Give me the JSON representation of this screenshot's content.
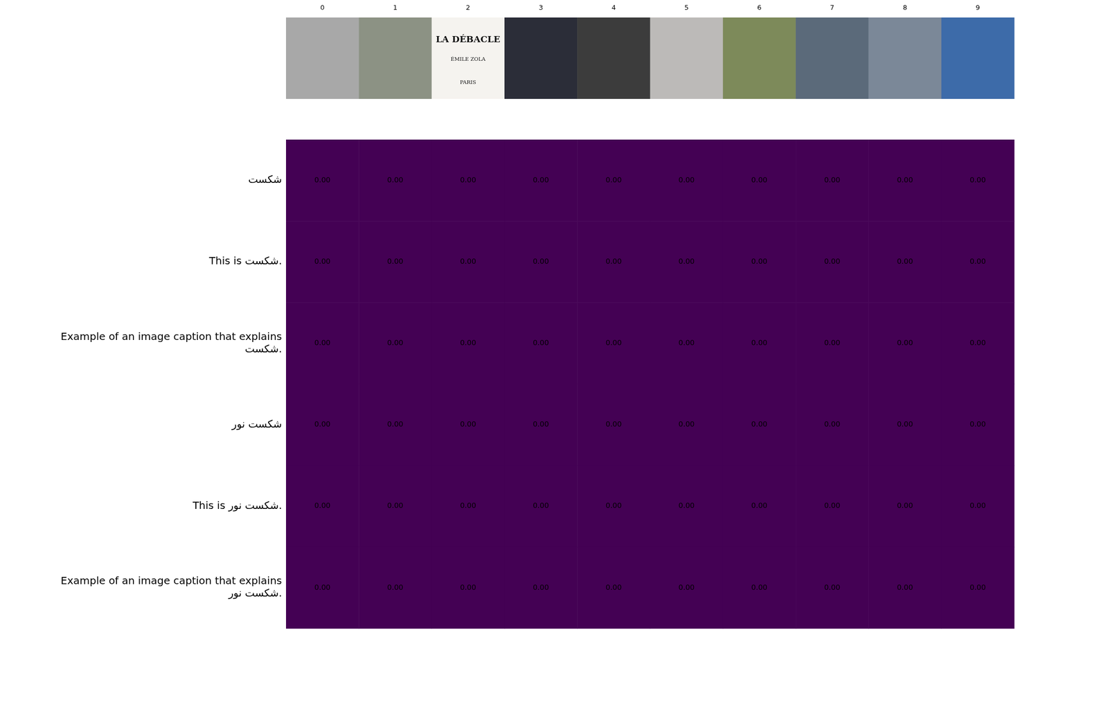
{
  "chart_data": {
    "type": "heatmap",
    "columns": [
      0,
      1,
      2,
      3,
      4,
      5,
      6,
      7,
      8,
      9
    ],
    "rows": [
      [
        "شکست"
      ],
      [
        "This is شکست."
      ],
      [
        "Example of an image caption that explains",
        "شکست."
      ],
      [
        "شکست نور"
      ],
      [
        "This is شکست نور."
      ],
      [
        "Example of an image caption that explains",
        "شکست نور."
      ]
    ],
    "cells": [
      [
        0,
        0,
        0,
        0,
        0,
        0,
        0,
        0,
        0,
        0
      ],
      [
        0,
        0,
        0,
        0,
        0,
        0,
        0,
        0,
        0,
        0
      ],
      [
        0,
        0,
        0,
        0,
        0,
        0,
        0,
        0,
        0,
        0
      ],
      [
        0,
        0,
        0,
        0,
        0,
        0,
        0,
        0,
        0,
        0
      ],
      [
        0,
        0,
        0,
        0,
        0,
        0,
        0,
        0,
        0,
        0
      ],
      [
        0,
        0,
        0,
        0,
        0,
        0,
        0,
        0,
        0,
        0
      ]
    ],
    "value_labels": [
      [
        "0.00",
        "0.00",
        "0.00",
        "0.00",
        "0.00",
        "0.00",
        "0.00",
        "0.00",
        "0.00",
        "0.00"
      ],
      [
        "0.00",
        "0.00",
        "0.00",
        "0.00",
        "0.00",
        "0.00",
        "0.00",
        "0.00",
        "0.00",
        "0.00"
      ],
      [
        "0.00",
        "0.00",
        "0.00",
        "0.00",
        "0.00",
        "0.00",
        "0.00",
        "0.00",
        "0.00",
        "0.00"
      ],
      [
        "0.00",
        "0.00",
        "0.00",
        "0.00",
        "0.00",
        "0.00",
        "0.00",
        "0.00",
        "0.00",
        "0.00"
      ],
      [
        "0.00",
        "0.00",
        "0.00",
        "0.00",
        "0.00",
        "0.00",
        "0.00",
        "0.00",
        "0.00",
        "0.00"
      ],
      [
        "0.00",
        "0.00",
        "0.00",
        "0.00",
        "0.00",
        "0.00",
        "0.00",
        "0.00",
        "0.00",
        "0.00"
      ]
    ],
    "image_texts": {
      "2": [
        "LA DÉBACLE",
        "ÉMILE ZOLA",
        "PARIS"
      ]
    },
    "data_labels": true,
    "grid": false
  }
}
